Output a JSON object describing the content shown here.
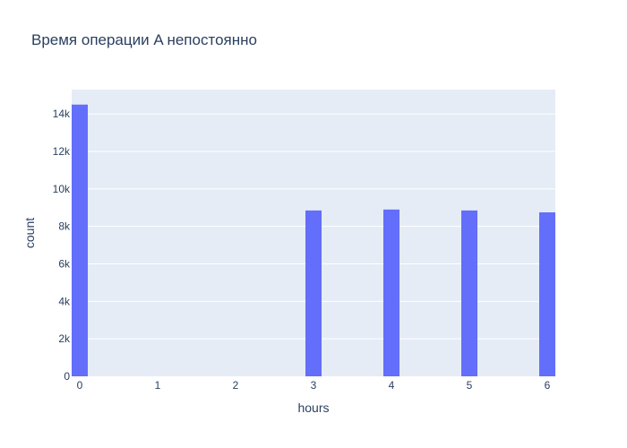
{
  "chart_data": {
    "type": "bar",
    "title": "Время операции A непостоянно",
    "xlabel": "hours",
    "ylabel": "count",
    "x": [
      0,
      3,
      4,
      5,
      6
    ],
    "values": [
      14500,
      8850,
      8900,
      8850,
      8750
    ],
    "xlim": [
      0,
      6
    ],
    "ylim": [
      0,
      15300
    ],
    "x_ticks": [
      "0",
      "1",
      "2",
      "3",
      "4",
      "5",
      "6"
    ],
    "y_ticks": [
      "0",
      "2k",
      "4k",
      "6k",
      "8k",
      "10k",
      "12k",
      "14k"
    ],
    "y_tick_values": [
      0,
      2000,
      4000,
      6000,
      8000,
      10000,
      12000,
      14000
    ],
    "grid": true,
    "colors": {
      "bar": "#636efa",
      "plot_bg": "#e5ecf6",
      "grid": "#ffffff",
      "text": "#2a3f5f"
    }
  }
}
